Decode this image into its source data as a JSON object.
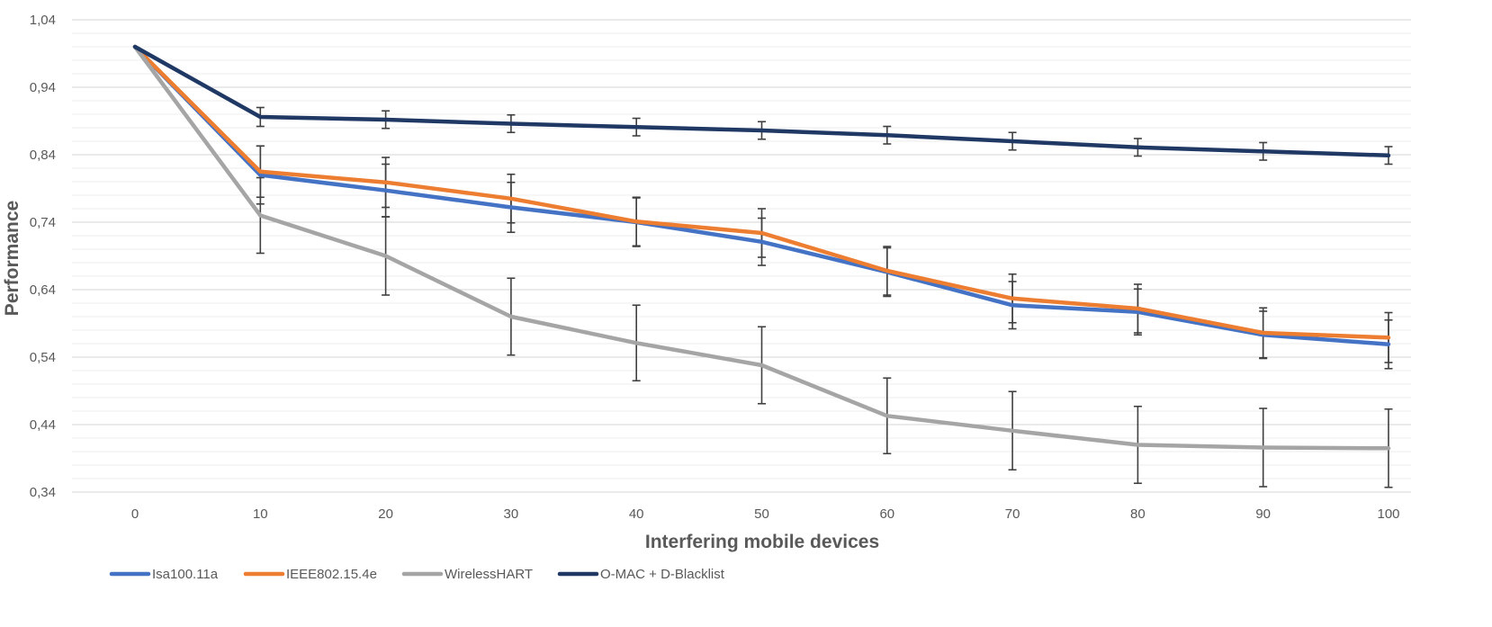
{
  "chart_data": {
    "type": "line",
    "title": "",
    "xlabel": "Interfering mobile devices",
    "ylabel": "Performance",
    "x": [
      0,
      10,
      20,
      30,
      40,
      50,
      60,
      70,
      80,
      90,
      100
    ],
    "x_tick_labels": [
      "0",
      "10",
      "20",
      "30",
      "40",
      "50",
      "60",
      "70",
      "80",
      "90",
      "100"
    ],
    "ylim": [
      0.34,
      1.04
    ],
    "y_ticks": [
      0.34,
      0.44,
      0.54,
      0.64,
      0.74,
      0.84,
      0.94,
      1.04
    ],
    "y_tick_labels": [
      "0,34",
      "0,44",
      "0,54",
      "0,64",
      "0,74",
      "0,84",
      "0,94",
      "1,04"
    ],
    "grid": true,
    "legend_position": "bottom",
    "series": [
      {
        "name": "Isa100.11a",
        "color": "#4472C4",
        "values": [
          1.0,
          0.81,
          0.787,
          0.762,
          0.74,
          0.711,
          0.666,
          0.617,
          0.607,
          0.573,
          0.559
        ],
        "error": [
          0,
          0.043,
          0.039,
          0.037,
          0.036,
          0.035,
          0.036,
          0.035,
          0.034,
          0.035,
          0.036
        ]
      },
      {
        "name": "IEEE802.15.4e",
        "color": "#ED7D31",
        "values": [
          1.0,
          0.815,
          0.799,
          0.775,
          0.741,
          0.724,
          0.668,
          0.627,
          0.612,
          0.576,
          0.569
        ],
        "error": [
          0,
          0.038,
          0.037,
          0.036,
          0.036,
          0.036,
          0.036,
          0.036,
          0.036,
          0.037,
          0.037
        ]
      },
      {
        "name": "WirelessHART",
        "color": "#A5A5A5",
        "values": [
          1.0,
          0.75,
          0.69,
          0.6,
          0.561,
          0.528,
          0.453,
          0.431,
          0.41,
          0.406,
          0.405
        ],
        "error": [
          0,
          0.056,
          0.058,
          0.057,
          0.056,
          0.057,
          0.056,
          0.058,
          0.057,
          0.058,
          0.058
        ]
      },
      {
        "name": "O-MAC + D-Blacklist",
        "color": "#1F3864",
        "values": [
          1.0,
          0.896,
          0.892,
          0.886,
          0.881,
          0.876,
          0.869,
          0.86,
          0.851,
          0.845,
          0.839
        ],
        "error": [
          0,
          0.014,
          0.013,
          0.013,
          0.013,
          0.013,
          0.013,
          0.013,
          0.013,
          0.013,
          0.013
        ]
      }
    ]
  }
}
